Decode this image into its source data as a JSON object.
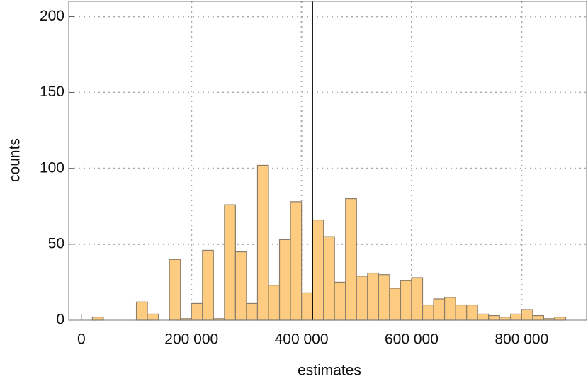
{
  "chart_data": {
    "type": "histogram",
    "xlabel": "estimates",
    "ylabel": "counts",
    "bins": [
      20000,
      40000,
      60000,
      80000,
      100000,
      120000,
      140000,
      160000,
      180000,
      200000,
      220000,
      240000,
      260000,
      280000,
      300000,
      320000,
      340000,
      360000,
      380000,
      400000,
      420000,
      440000,
      460000,
      480000,
      500000,
      520000,
      540000,
      560000,
      580000,
      600000,
      620000,
      640000,
      660000,
      680000,
      700000,
      720000,
      740000,
      760000,
      780000,
      800000,
      820000,
      840000,
      860000,
      880000
    ],
    "counts": [
      2,
      0,
      0,
      0,
      12,
      4,
      0,
      40,
      1,
      11,
      46,
      1,
      76,
      45,
      11,
      102,
      23,
      53,
      78,
      18,
      66,
      55,
      25,
      80,
      29,
      31,
      30,
      21,
      26,
      28,
      10,
      14,
      15,
      10,
      10,
      4,
      3,
      2,
      4,
      7,
      3,
      1,
      2
    ],
    "color": "#fdcc80",
    "edgecolor": "#8c7d68",
    "reference_line": 420000,
    "xlim": [
      -23000,
      918000
    ],
    "xticks": [
      0,
      {
        "value": 200000,
        "label": "200 000"
      },
      {
        "value": 400000,
        "label": "400 000"
      },
      {
        "value": 600000,
        "label": "600 000"
      },
      {
        "value": 800000,
        "label": "800 000"
      }
    ],
    "ylim": [
      0,
      210
    ],
    "yticks": [
      0,
      50,
      100,
      150,
      200
    ],
    "grid": true
  }
}
